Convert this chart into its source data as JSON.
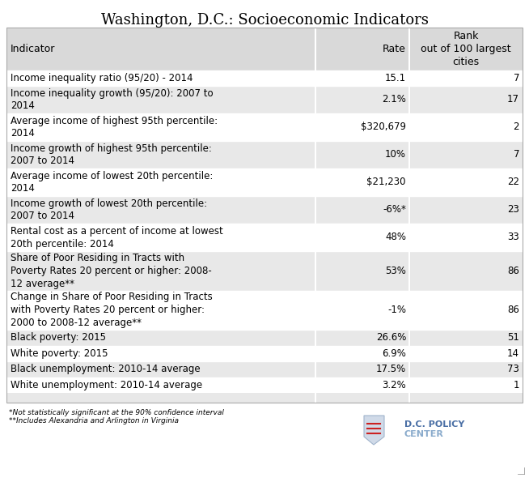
{
  "title": "Washington, D.C.: Socioeconomic Indicators",
  "rows": [
    {
      "indicator": "Income inequality ratio (95/20) - 2014",
      "rate": "15.1",
      "rank": "7",
      "shaded": false,
      "nlines": 1
    },
    {
      "indicator": "Income inequality growth (95/20): 2007 to\n2014",
      "rate": "2.1%",
      "rank": "17",
      "shaded": true,
      "nlines": 2
    },
    {
      "indicator": "Average income of highest 95th percentile:\n2014",
      "rate": "$320,679",
      "rank": "2",
      "shaded": false,
      "nlines": 2
    },
    {
      "indicator": "Income growth of highest 95th percentile:\n2007 to 2014",
      "rate": "10%",
      "rank": "7",
      "shaded": true,
      "nlines": 2
    },
    {
      "indicator": "Average income of lowest 20th percentile:\n2014",
      "rate": "$21,230",
      "rank": "22",
      "shaded": false,
      "nlines": 2
    },
    {
      "indicator": "Income growth of lowest 20th percentile:\n2007 to 2014",
      "rate": "-6%*",
      "rank": "23",
      "shaded": true,
      "nlines": 2
    },
    {
      "indicator": "Rental cost as a percent of income at lowest\n20th percentile: 2014",
      "rate": "48%",
      "rank": "33",
      "shaded": false,
      "nlines": 2
    },
    {
      "indicator": "Share of Poor Residing in Tracts with\nPoverty Rates 20 percent or higher: 2008-\n12 average**",
      "rate": "53%",
      "rank": "86",
      "shaded": true,
      "nlines": 3
    },
    {
      "indicator": "Change in Share of Poor Residing in Tracts\nwith Poverty Rates 20 percent or higher:\n2000 to 2008-12 average**",
      "rate": "-1%",
      "rank": "86",
      "shaded": false,
      "nlines": 3
    },
    {
      "indicator": "Black poverty: 2015",
      "rate": "26.6%",
      "rank": "51",
      "shaded": true,
      "nlines": 1
    },
    {
      "indicator": "White poverty: 2015",
      "rate": "6.9%",
      "rank": "14",
      "shaded": false,
      "nlines": 1
    },
    {
      "indicator": "Black unemployment: 2010-14 average",
      "rate": "17.5%",
      "rank": "73",
      "shaded": true,
      "nlines": 1
    },
    {
      "indicator": "White unemployment: 2010-14 average",
      "rate": "3.2%",
      "rank": "1",
      "shaded": false,
      "nlines": 1
    }
  ],
  "footnotes": [
    "*Not statistically significant at the 90% confidence interval",
    "**Includes Alexandria and Arlington in Virginia"
  ],
  "bg_color": "#ffffff",
  "header_bg": "#d9d9d9",
  "shaded_bg": "#e8e8e8",
  "white_bg": "#ffffff",
  "border_color": "#aaaaaa",
  "sep_color": "#ffffff",
  "title_fontsize": 13,
  "header_fontsize": 9,
  "cell_fontsize": 8.5,
  "footnote_fontsize": 6.5,
  "logo_color": "#4a6fa5",
  "logo_text_color": "#4a6fa5"
}
